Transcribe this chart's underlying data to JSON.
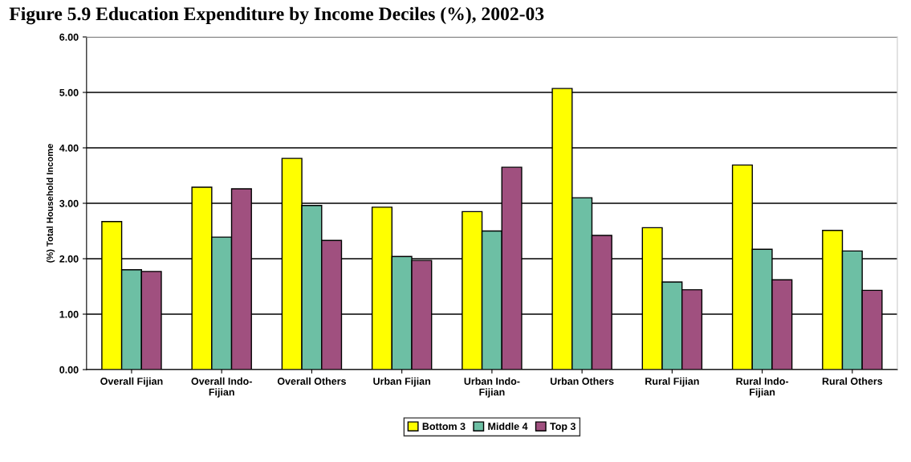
{
  "chart_data": {
    "type": "bar",
    "title": "Figure 5.9 Education Expenditure by Income Deciles (%), 2002-03",
    "ylabel": "(%) Total Household Income",
    "categories": [
      "Overall Fijian",
      "Overall Indo-\nFijian",
      "Overall Others",
      "Urban Fijian",
      "Urban Indo-\nFijian",
      "Urban Others",
      "Rural Fijian",
      "Rural Indo-\nFijian",
      "Rural Others"
    ],
    "series": [
      {
        "name": "Bottom 3",
        "color": "#ffff00",
        "values": [
          2.67,
          3.29,
          3.81,
          2.93,
          2.85,
          5.07,
          2.56,
          3.69,
          2.51
        ]
      },
      {
        "name": "Middle 4",
        "color": "#6dbfa4",
        "values": [
          1.8,
          2.39,
          2.96,
          2.04,
          2.5,
          3.1,
          1.58,
          2.17,
          2.14
        ]
      },
      {
        "name": "Top 3",
        "color": "#a0507f",
        "values": [
          1.77,
          3.26,
          2.33,
          1.97,
          3.65,
          2.42,
          1.44,
          1.62,
          1.43
        ]
      }
    ],
    "ylim": [
      0,
      6
    ],
    "yticks": [
      {
        "value": 0,
        "label": "0.00"
      },
      {
        "value": 1,
        "label": "1.00"
      },
      {
        "value": 2,
        "label": "2.00"
      },
      {
        "value": 3,
        "label": "3.00"
      },
      {
        "value": 4,
        "label": "4.00"
      },
      {
        "value": 5,
        "label": "5.00"
      },
      {
        "value": 6,
        "label": "6.00"
      }
    ],
    "grid": "y",
    "legend": "bottom"
  }
}
